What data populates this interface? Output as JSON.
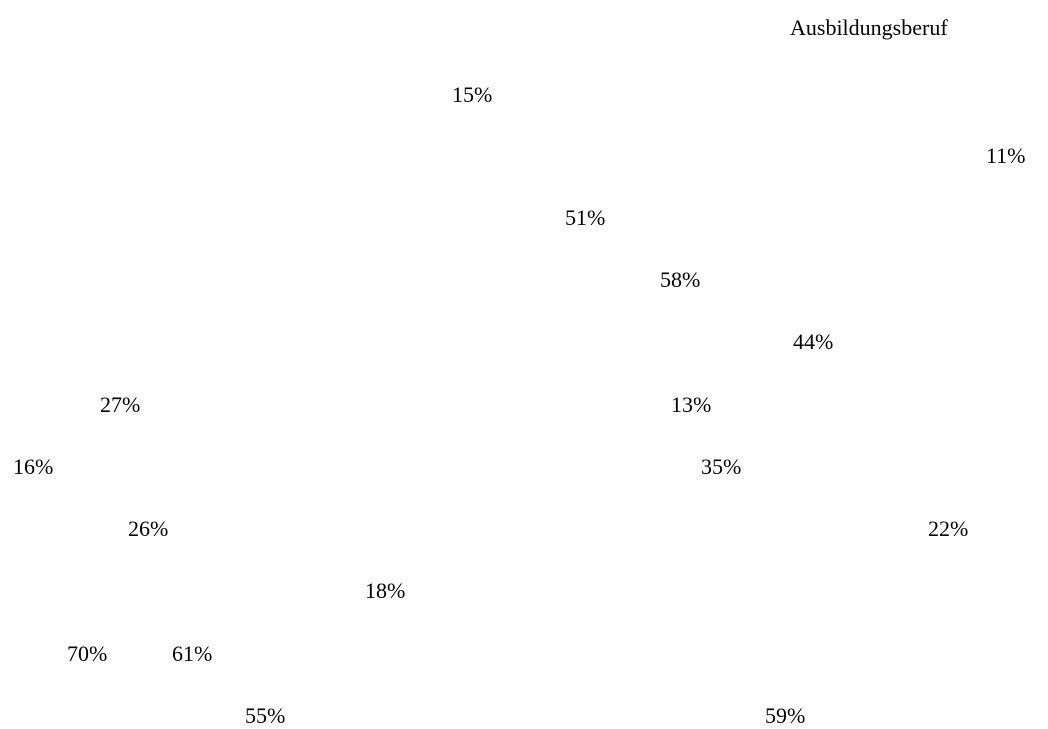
{
  "heading": "Ausbildungsberuf",
  "values": [
    "15%",
    "11%",
    "51%",
    "58%",
    "44%",
    "27%",
    "13%",
    "16%",
    "35%",
    "26%",
    "22%",
    "18%",
    "70%",
    "61%",
    "55%",
    "59%"
  ]
}
